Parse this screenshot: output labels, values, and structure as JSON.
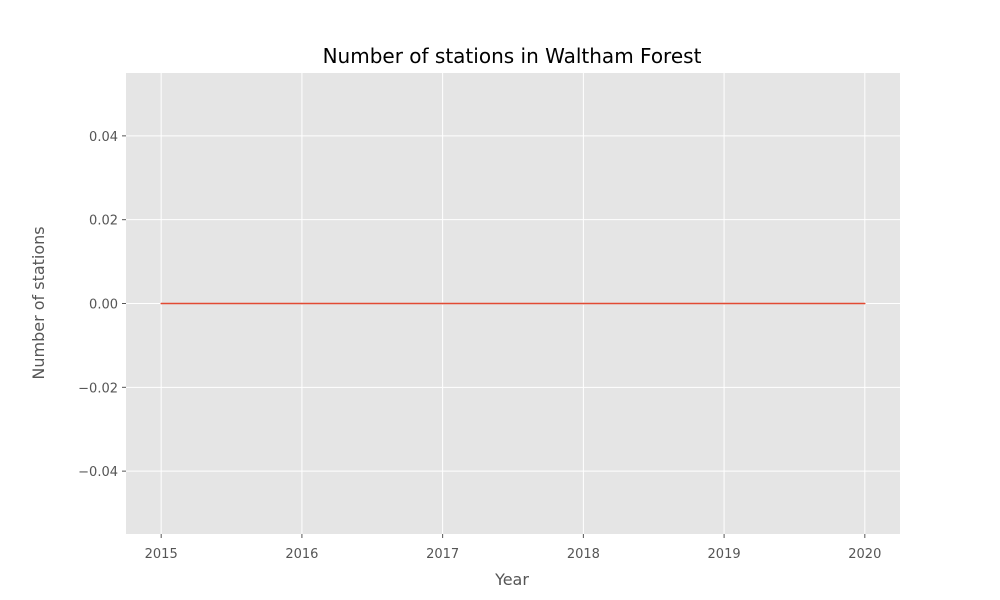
{
  "chart_data": {
    "type": "line",
    "title": "Number of stations in Waltham Forest",
    "xlabel": "Year",
    "ylabel": "Number of stations",
    "x": [
      2015,
      2016,
      2017,
      2018,
      2019,
      2020
    ],
    "series": [
      {
        "values": [
          0,
          0,
          0,
          0,
          0,
          0
        ]
      }
    ],
    "xlim": [
      2014.75,
      2020.25
    ],
    "ylim": [
      -0.055,
      0.055
    ],
    "xticks": [
      2015,
      2016,
      2017,
      2018,
      2019,
      2020
    ],
    "xtick_labels": [
      "2015",
      "2016",
      "2017",
      "2018",
      "2019",
      "2020"
    ],
    "yticks": [
      -0.04,
      -0.02,
      0.0,
      0.02,
      0.04
    ],
    "ytick_labels": [
      "−0.04",
      "−0.02",
      "0.00",
      "0.02",
      "0.04"
    ],
    "grid": true,
    "colors": {
      "plot_background": "#e5e5e5",
      "grid": "#ffffff",
      "line": "#e24a33",
      "tick": "#555555"
    }
  }
}
